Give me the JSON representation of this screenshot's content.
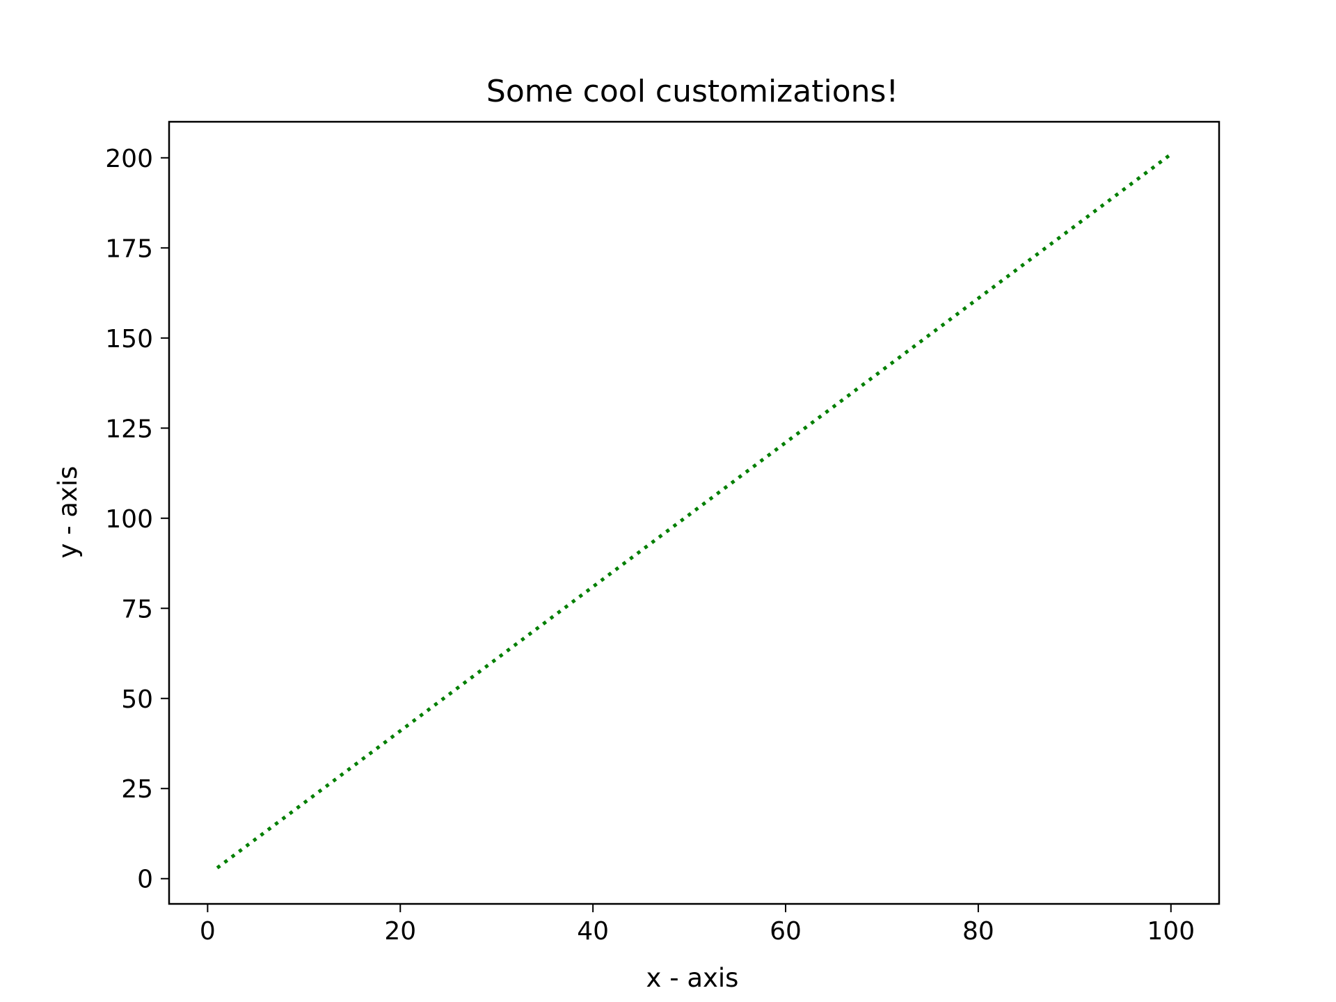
{
  "chart_data": {
    "type": "line",
    "title": "Some cool customizations!",
    "xlabel": "x - axis",
    "ylabel": "y - axis",
    "xlim": [
      -4,
      105
    ],
    "ylim": [
      -7,
      210
    ],
    "xticks": [
      0,
      20,
      40,
      60,
      80,
      100
    ],
    "yticks": [
      0,
      25,
      50,
      75,
      100,
      125,
      150,
      175,
      200
    ],
    "x_tick_labels": [
      "0",
      "20",
      "40",
      "60",
      "80",
      "100"
    ],
    "y_tick_labels": [
      "0",
      "25",
      "50",
      "75",
      "100",
      "125",
      "150",
      "175",
      "200"
    ],
    "grid": false,
    "series": [
      {
        "line_style": "dotted",
        "color": "#007f00",
        "x_start": 1,
        "x_end": 100,
        "x_step": 1,
        "slope": 2,
        "intercept": 1
      }
    ]
  }
}
